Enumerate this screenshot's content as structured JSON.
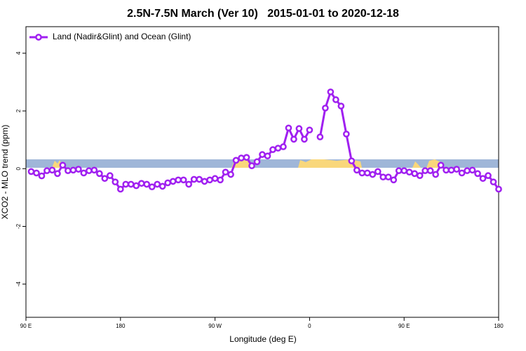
{
  "chart_data": {
    "type": "line",
    "title": "2.5N-7.5N March (Ver 10)   2015-01-01 to 2020-12-18",
    "x_label": "Longitude (deg E)",
    "y_label": "XCO2 - MLO trend (ppm)",
    "xlim": [
      90,
      540
    ],
    "ylim": [
      -5.15,
      4.92
    ],
    "xticks": [
      {
        "value": 90,
        "label": "90 E"
      },
      {
        "value": 180,
        "label": "180"
      },
      {
        "value": 270,
        "label": "90 W"
      },
      {
        "value": 360,
        "label": "0"
      },
      {
        "value": 450,
        "label": "90 E"
      },
      {
        "value": 540,
        "label": "180"
      }
    ],
    "yticks": [
      4,
      2,
      0,
      -2,
      -4
    ],
    "legend_position": "top-left",
    "x": [
      95,
      100,
      105,
      110,
      115,
      120,
      125,
      130,
      135,
      140,
      145,
      150,
      155,
      160,
      165,
      170,
      175,
      180,
      185,
      190,
      195,
      200,
      205,
      210,
      215,
      220,
      225,
      230,
      235,
      240,
      245,
      250,
      255,
      260,
      265,
      270,
      275,
      280,
      285,
      290,
      295,
      300,
      305,
      310,
      315,
      320,
      325,
      330,
      335,
      340,
      345,
      350,
      355,
      360,
      365,
      370,
      375,
      380,
      385,
      390,
      395,
      400,
      405,
      410,
      415,
      420,
      425,
      430,
      435,
      440,
      445,
      450,
      455,
      460,
      465,
      470,
      475,
      480,
      485,
      490,
      495,
      500,
      505,
      510,
      515,
      520,
      525,
      530,
      535,
      540
    ],
    "series": [
      {
        "name": "Land (Nadir&Glint) and Ocean (Glint)",
        "color": "#a020f0",
        "values": [
          -0.1,
          -0.15,
          -0.25,
          -0.07,
          -0.05,
          -0.17,
          0.12,
          -0.07,
          -0.05,
          -0.02,
          -0.15,
          -0.07,
          -0.05,
          -0.17,
          -0.34,
          -0.24,
          -0.46,
          -0.71,
          -0.54,
          -0.54,
          -0.59,
          -0.51,
          -0.54,
          -0.63,
          -0.54,
          -0.61,
          -0.49,
          -0.44,
          -0.39,
          -0.39,
          -0.54,
          -0.37,
          -0.37,
          -0.44,
          -0.39,
          -0.34,
          -0.39,
          -0.12,
          -0.2,
          0.29,
          0.37,
          0.39,
          0.1,
          0.24,
          0.49,
          0.44,
          0.66,
          0.71,
          0.76,
          1.41,
          1.02,
          1.39,
          1.02,
          1.34,
          null,
          1.1,
          2.1,
          2.66,
          2.39,
          2.17,
          1.2,
          0.27,
          -0.05,
          -0.15,
          -0.15,
          -0.2,
          -0.1,
          -0.29,
          -0.29,
          -0.39,
          -0.07,
          -0.07,
          -0.12,
          -0.17,
          -0.24,
          -0.07,
          -0.07,
          -0.2,
          0.12,
          -0.05,
          -0.05,
          -0.02,
          -0.15,
          -0.07,
          -0.05,
          -0.17,
          -0.34,
          -0.24,
          -0.46,
          -0.71
        ]
      }
    ]
  }
}
